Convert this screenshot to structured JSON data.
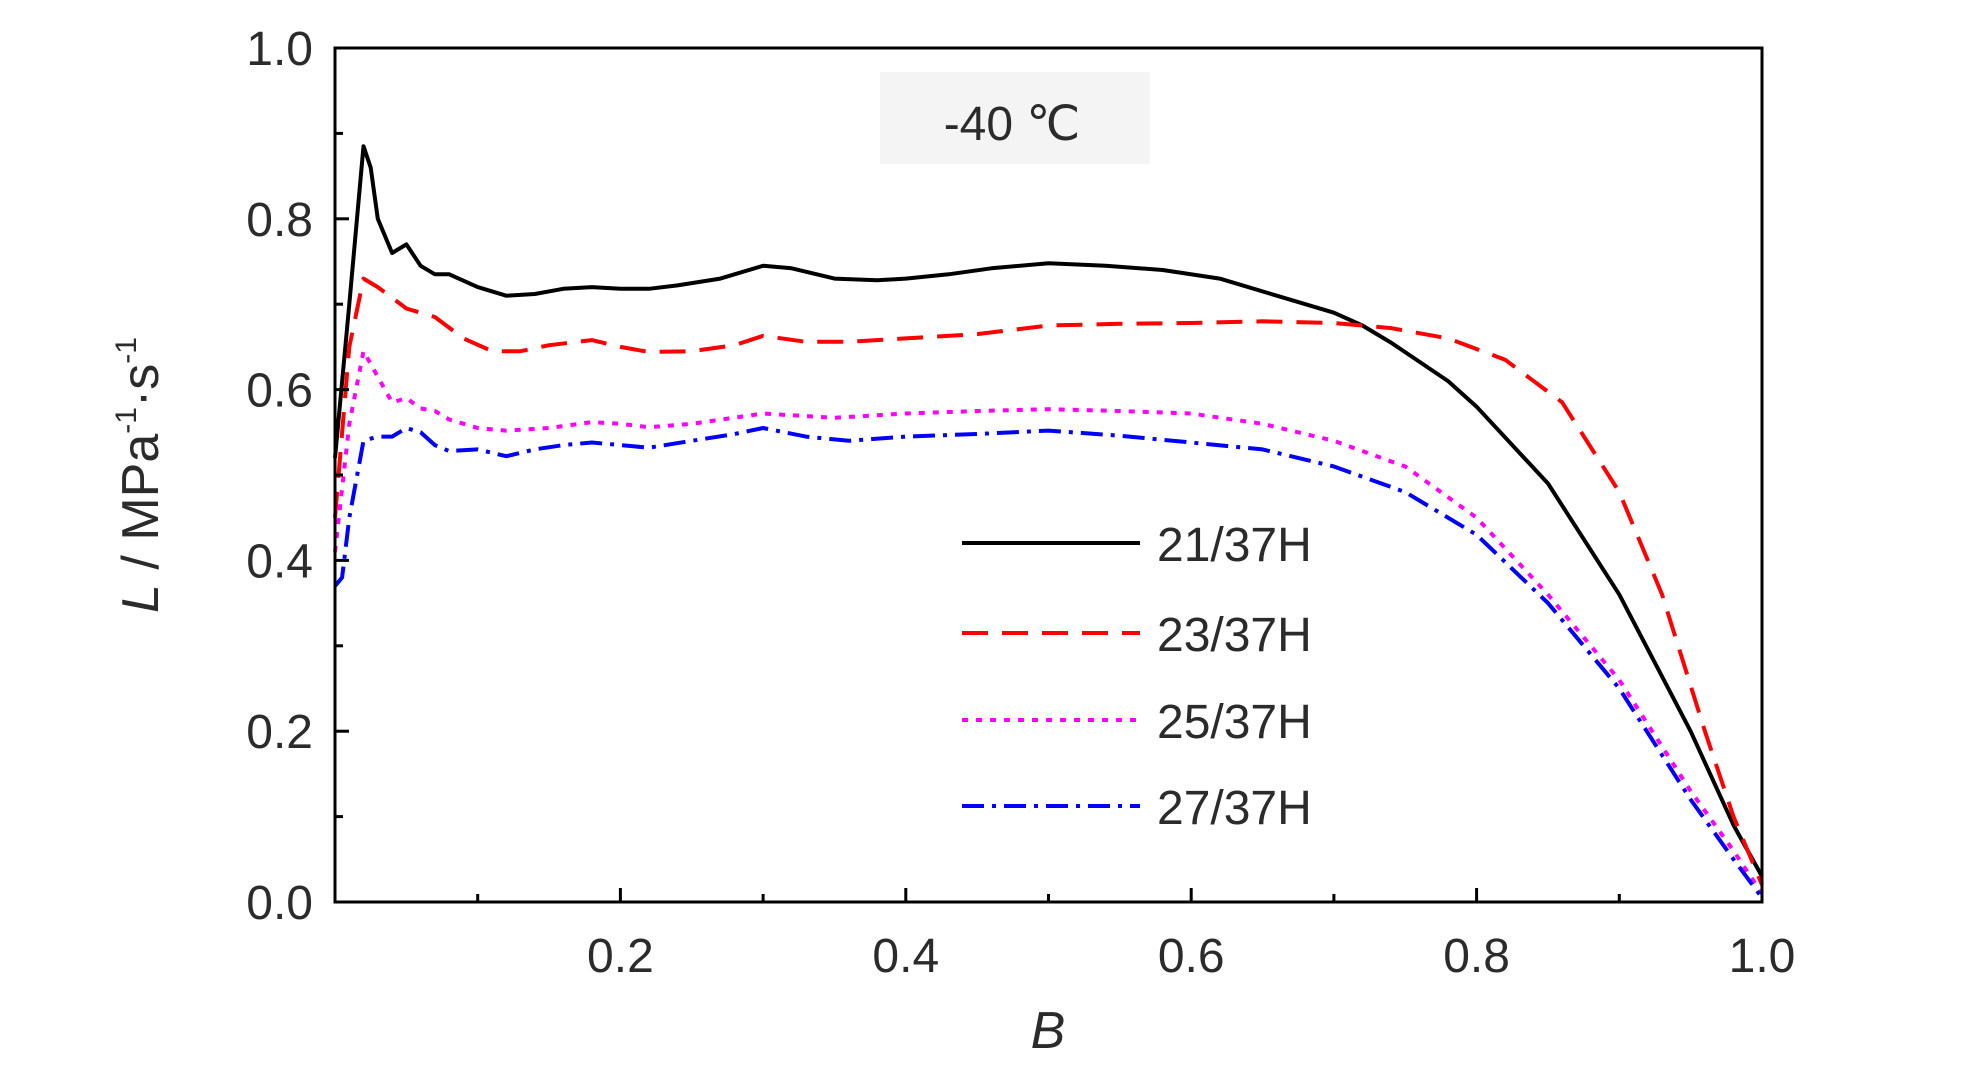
{
  "chart_data": {
    "type": "line",
    "title": "",
    "annotation": "-40 ℃",
    "xlabel": "B",
    "ylabel": {
      "symbol": "L",
      "separator": " / MPa",
      "sup1": "-1",
      "mid": "·s",
      "sup2": "-1"
    },
    "xlim": [
      0.0,
      1.0
    ],
    "ylim": [
      0.0,
      1.0
    ],
    "x_ticks": [
      {
        "value": 0.2,
        "label": "0.2"
      },
      {
        "value": 0.4,
        "label": "0.4"
      },
      {
        "value": 0.6,
        "label": "0.6"
      },
      {
        "value": 0.8,
        "label": "0.8"
      },
      {
        "value": 1.0,
        "label": "1.0"
      }
    ],
    "y_ticks": [
      {
        "value": 0.0,
        "label": "0.0"
      },
      {
        "value": 0.2,
        "label": "0.2"
      },
      {
        "value": 0.4,
        "label": "0.4"
      },
      {
        "value": 0.6,
        "label": "0.6"
      },
      {
        "value": 0.8,
        "label": "0.8"
      },
      {
        "value": 1.0,
        "label": "1.0"
      }
    ],
    "grid": false,
    "legend_position": "bottom-right",
    "series": [
      {
        "name": "21/37H",
        "color": "#000000",
        "dash": "solid",
        "x": [
          0.0,
          0.01,
          0.02,
          0.025,
          0.03,
          0.04,
          0.05,
          0.06,
          0.07,
          0.08,
          0.1,
          0.12,
          0.14,
          0.16,
          0.18,
          0.2,
          0.22,
          0.24,
          0.27,
          0.3,
          0.32,
          0.35,
          0.38,
          0.4,
          0.43,
          0.46,
          0.5,
          0.54,
          0.58,
          0.62,
          0.66,
          0.7,
          0.72,
          0.74,
          0.78,
          0.8,
          0.85,
          0.9,
          0.95,
          0.98,
          1.0
        ],
        "y": [
          0.52,
          0.7,
          0.885,
          0.86,
          0.8,
          0.76,
          0.77,
          0.745,
          0.735,
          0.735,
          0.72,
          0.71,
          0.712,
          0.718,
          0.72,
          0.718,
          0.718,
          0.722,
          0.73,
          0.745,
          0.742,
          0.73,
          0.728,
          0.73,
          0.735,
          0.742,
          0.748,
          0.745,
          0.74,
          0.73,
          0.71,
          0.69,
          0.675,
          0.655,
          0.61,
          0.58,
          0.49,
          0.36,
          0.2,
          0.09,
          0.03
        ]
      },
      {
        "name": "23/37H",
        "color": "#ff0000",
        "dash": "dashed",
        "x": [
          0.0,
          0.01,
          0.02,
          0.03,
          0.05,
          0.07,
          0.09,
          0.11,
          0.13,
          0.15,
          0.18,
          0.2,
          0.22,
          0.25,
          0.28,
          0.3,
          0.33,
          0.36,
          0.4,
          0.45,
          0.5,
          0.55,
          0.6,
          0.65,
          0.7,
          0.74,
          0.78,
          0.82,
          0.86,
          0.9,
          0.93,
          0.96,
          0.98,
          1.0
        ],
        "y": [
          0.45,
          0.65,
          0.73,
          0.72,
          0.695,
          0.685,
          0.66,
          0.645,
          0.645,
          0.652,
          0.658,
          0.65,
          0.644,
          0.645,
          0.652,
          0.663,
          0.656,
          0.656,
          0.66,
          0.665,
          0.675,
          0.677,
          0.678,
          0.68,
          0.678,
          0.672,
          0.66,
          0.635,
          0.585,
          0.48,
          0.36,
          0.2,
          0.1,
          0.02
        ]
      },
      {
        "name": "25/37H",
        "color": "#ff00ff",
        "dash": "dotted",
        "x": [
          0.0,
          0.01,
          0.02,
          0.03,
          0.04,
          0.05,
          0.06,
          0.07,
          0.08,
          0.1,
          0.12,
          0.15,
          0.18,
          0.2,
          0.22,
          0.25,
          0.3,
          0.35,
          0.4,
          0.45,
          0.5,
          0.55,
          0.6,
          0.65,
          0.7,
          0.75,
          0.8,
          0.85,
          0.9,
          0.95,
          0.98,
          1.0
        ],
        "y": [
          0.41,
          0.56,
          0.645,
          0.615,
          0.585,
          0.59,
          0.578,
          0.575,
          0.565,
          0.555,
          0.552,
          0.555,
          0.562,
          0.56,
          0.556,
          0.56,
          0.572,
          0.567,
          0.572,
          0.575,
          0.577,
          0.575,
          0.572,
          0.56,
          0.54,
          0.51,
          0.45,
          0.36,
          0.26,
          0.13,
          0.06,
          0.01
        ]
      },
      {
        "name": "27/37H",
        "color": "#0000ff",
        "dash": "dashdot",
        "x": [
          0.0,
          0.005,
          0.01,
          0.02,
          0.03,
          0.04,
          0.05,
          0.06,
          0.07,
          0.08,
          0.1,
          0.12,
          0.14,
          0.16,
          0.18,
          0.2,
          0.22,
          0.25,
          0.28,
          0.3,
          0.33,
          0.36,
          0.4,
          0.45,
          0.5,
          0.55,
          0.6,
          0.65,
          0.7,
          0.75,
          0.8,
          0.85,
          0.9,
          0.95,
          0.98,
          1.0
        ],
        "y": [
          0.37,
          0.38,
          0.45,
          0.54,
          0.545,
          0.545,
          0.555,
          0.55,
          0.535,
          0.528,
          0.53,
          0.522,
          0.53,
          0.535,
          0.538,
          0.535,
          0.532,
          0.54,
          0.548,
          0.555,
          0.545,
          0.54,
          0.545,
          0.548,
          0.552,
          0.546,
          0.538,
          0.53,
          0.51,
          0.48,
          0.43,
          0.35,
          0.25,
          0.12,
          0.05,
          0.005
        ]
      }
    ]
  }
}
